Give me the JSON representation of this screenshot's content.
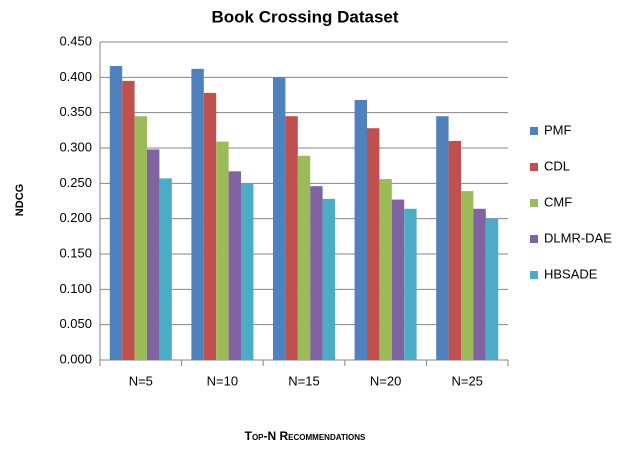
{
  "chart_data": {
    "type": "bar",
    "title": "Book Crossing Dataset",
    "x_label": "Top-N Recommendations",
    "y_label": "NDCG",
    "categories": [
      "N=5",
      "N=10",
      "N=15",
      "N=20",
      "N=25"
    ],
    "series": [
      {
        "name": "PMF",
        "color": "#4f81bd",
        "values": [
          0.416,
          0.412,
          0.4,
          0.368,
          0.345
        ]
      },
      {
        "name": "CDL",
        "color": "#c0504d",
        "values": [
          0.395,
          0.378,
          0.345,
          0.328,
          0.31
        ]
      },
      {
        "name": "CMF",
        "color": "#9bbb59",
        "values": [
          0.345,
          0.309,
          0.289,
          0.256,
          0.239
        ]
      },
      {
        "name": "DLMR-DAE",
        "color": "#8064a2",
        "values": [
          0.298,
          0.267,
          0.246,
          0.227,
          0.214
        ]
      },
      {
        "name": "HBSADE",
        "color": "#4bacc6",
        "values": [
          0.257,
          0.25,
          0.228,
          0.214,
          0.2
        ]
      }
    ],
    "ylim": [
      0,
      0.45
    ],
    "yticks": [
      {
        "value": 0,
        "label": "0.000"
      },
      {
        "value": 0.05,
        "label": "0.050"
      },
      {
        "value": 0.1,
        "label": "0.100"
      },
      {
        "value": 0.15,
        "label": "0.150"
      },
      {
        "value": 0.2,
        "label": "0.200"
      },
      {
        "value": 0.25,
        "label": "0.250"
      },
      {
        "value": 0.3,
        "label": "0.300"
      },
      {
        "value": 0.35,
        "label": "0.350"
      },
      {
        "value": 0.4,
        "label": "0.400"
      },
      {
        "value": 0.45,
        "label": "0.450"
      }
    ],
    "grid": true,
    "legend": "right"
  }
}
